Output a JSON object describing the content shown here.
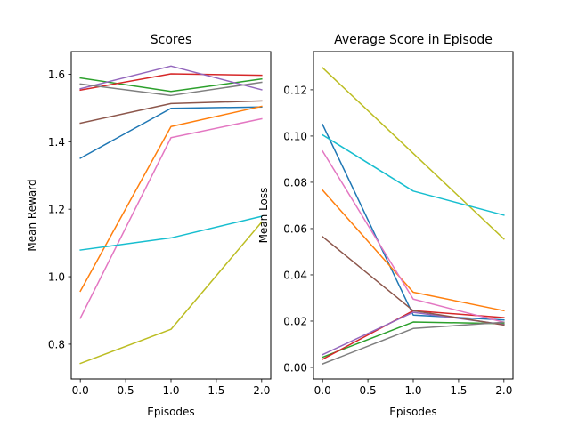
{
  "chart_data": [
    {
      "type": "line",
      "title": "Scores",
      "xlabel": "Episodes",
      "ylabel": "Mean Reward",
      "xlim": [
        -0.1,
        2.1
      ],
      "ylim": [
        0.697,
        1.667
      ],
      "x": [
        0,
        1,
        2
      ],
      "xticks": [
        "0.0",
        "0.5",
        "1.0",
        "1.5",
        "2.0"
      ],
      "xtick_values": [
        0,
        0.5,
        1,
        1.5,
        2
      ],
      "yticks": [
        "0.8",
        "1.0",
        "1.2",
        "1.4",
        "1.6"
      ],
      "ytick_values": [
        0.8,
        1.0,
        1.2,
        1.4,
        1.6
      ],
      "grid": false,
      "series": [
        {
          "color": "#1f77b4",
          "values": [
            1.351,
            1.499,
            1.503
          ]
        },
        {
          "color": "#ff7f0e",
          "values": [
            0.957,
            1.445,
            1.505
          ]
        },
        {
          "color": "#2ca02c",
          "values": [
            1.589,
            1.549,
            1.586
          ]
        },
        {
          "color": "#d62728",
          "values": [
            1.553,
            1.601,
            1.597
          ]
        },
        {
          "color": "#9467bd",
          "values": [
            1.557,
            1.624,
            1.554
          ]
        },
        {
          "color": "#8c564b",
          "values": [
            1.455,
            1.513,
            1.521
          ]
        },
        {
          "color": "#e377c2",
          "values": [
            0.877,
            1.412,
            1.468
          ]
        },
        {
          "color": "#7f7f7f",
          "values": [
            1.571,
            1.537,
            1.576
          ]
        },
        {
          "color": "#bcbd22",
          "values": [
            0.743,
            0.844,
            1.162
          ]
        },
        {
          "color": "#17becf",
          "values": [
            1.079,
            1.115,
            1.179
          ]
        }
      ]
    },
    {
      "type": "line",
      "title": "Average Score in Episode",
      "xlabel": "Episodes",
      "ylabel": "Mean Loss",
      "xlim": [
        -0.1,
        2.1
      ],
      "ylim": [
        -0.005,
        0.1365
      ],
      "x": [
        0,
        1,
        2
      ],
      "xticks": [
        "0.0",
        "0.5",
        "1.0",
        "1.5",
        "2.0"
      ],
      "xtick_values": [
        0,
        0.5,
        1,
        1.5,
        2
      ],
      "yticks": [
        "0.00",
        "0.02",
        "0.04",
        "0.06",
        "0.08",
        "0.10",
        "0.12"
      ],
      "ytick_values": [
        0,
        0.02,
        0.04,
        0.06,
        0.08,
        0.1,
        0.12
      ],
      "grid": false,
      "series": [
        {
          "color": "#1f77b4",
          "values": [
            0.105,
            0.0226,
            0.0205
          ]
        },
        {
          "color": "#ff7f0e",
          "values": [
            0.0766,
            0.0325,
            0.0245
          ]
        },
        {
          "color": "#2ca02c",
          "values": [
            0.0044,
            0.0196,
            0.0189
          ]
        },
        {
          "color": "#d62728",
          "values": [
            0.0035,
            0.0245,
            0.0215
          ]
        },
        {
          "color": "#9467bd",
          "values": [
            0.0055,
            0.0238,
            0.0185
          ]
        },
        {
          "color": "#8c564b",
          "values": [
            0.0565,
            0.0245,
            0.0183
          ]
        },
        {
          "color": "#e377c2",
          "values": [
            0.0935,
            0.0295,
            0.0195
          ]
        },
        {
          "color": "#7f7f7f",
          "values": [
            0.0015,
            0.0168,
            0.0195
          ]
        },
        {
          "color": "#bcbd22",
          "values": [
            0.1295,
            0.0925,
            0.0555
          ]
        },
        {
          "color": "#17becf",
          "values": [
            0.1005,
            0.0762,
            0.0658
          ]
        }
      ]
    }
  ]
}
